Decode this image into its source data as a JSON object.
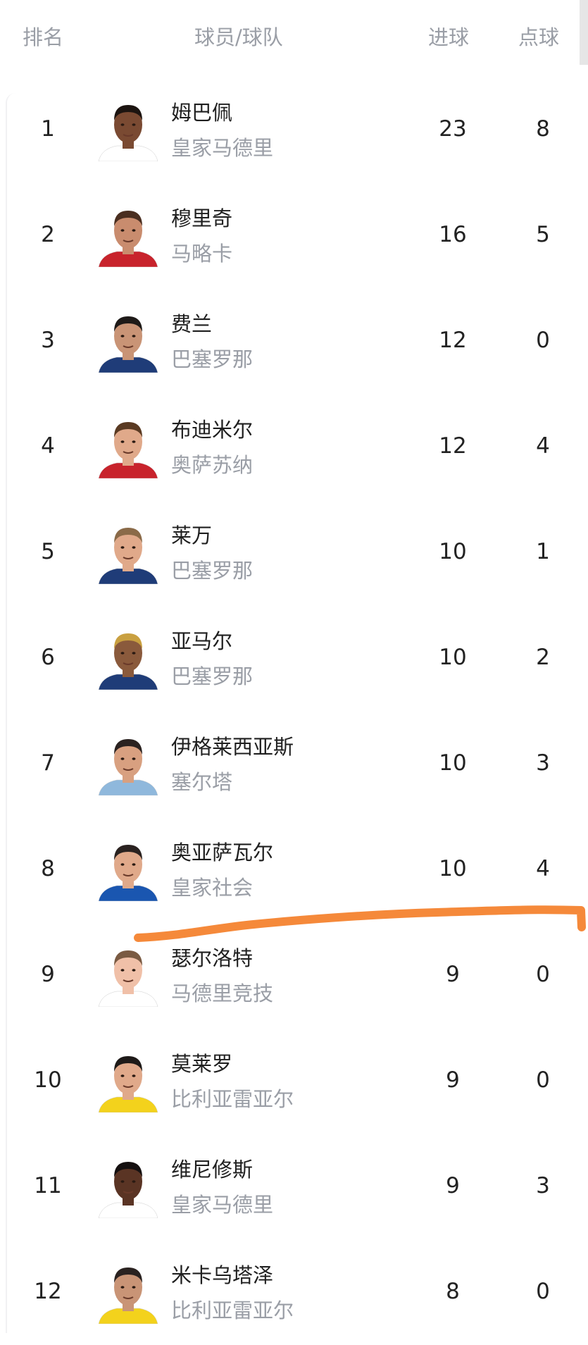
{
  "header": {
    "rank": "排名",
    "player_team": "球员/球队",
    "goals": "进球",
    "penalties": "点球"
  },
  "annotation_color": "#f5893a",
  "rows": [
    {
      "rank": "1",
      "name": "姆巴佩",
      "team": "皇家马德里",
      "goals": "23",
      "penalties": "8",
      "skin": "#7a4a32",
      "hair": "#1c1410",
      "jersey": "#ffffff"
    },
    {
      "rank": "2",
      "name": "穆里奇",
      "team": "马略卡",
      "goals": "16",
      "penalties": "5",
      "skin": "#c98c6e",
      "hair": "#4a2e20",
      "jersey": "#c8232c"
    },
    {
      "rank": "3",
      "name": "费兰",
      "team": "巴塞罗那",
      "goals": "12",
      "penalties": "0",
      "skin": "#c99476",
      "hair": "#1e1a18",
      "jersey": "#1f3c78"
    },
    {
      "rank": "4",
      "name": "布迪米尔",
      "team": "奥萨苏纳",
      "goals": "12",
      "penalties": "4",
      "skin": "#e0a98a",
      "hair": "#5a3a22",
      "jersey": "#c8232c"
    },
    {
      "rank": "5",
      "name": "莱万",
      "team": "巴塞罗那",
      "goals": "10",
      "penalties": "1",
      "skin": "#e0a98a",
      "hair": "#8a6a48",
      "jersey": "#1f3c78"
    },
    {
      "rank": "6",
      "name": "亚马尔",
      "team": "巴塞罗那",
      "goals": "10",
      "penalties": "2",
      "skin": "#8a5a3c",
      "hair": "#c9a040",
      "jersey": "#1f3c78"
    },
    {
      "rank": "7",
      "name": "伊格莱西亚斯",
      "team": "塞尔塔",
      "goals": "10",
      "penalties": "3",
      "skin": "#d8a080",
      "hair": "#2a2220",
      "jersey": "#8fb8dc"
    },
    {
      "rank": "8",
      "name": "奥亚萨瓦尔",
      "team": "皇家社会",
      "goals": "10",
      "penalties": "4",
      "skin": "#e0a98a",
      "hair": "#2a2220",
      "jersey": "#1a56b0"
    },
    {
      "rank": "9",
      "name": "瑟尔洛特",
      "team": "马德里竞技",
      "goals": "9",
      "penalties": "0",
      "skin": "#f0c0a8",
      "hair": "#7a5a42",
      "jersey": "#ffffff"
    },
    {
      "rank": "10",
      "name": "莫莱罗",
      "team": "比利亚雷亚尔",
      "goals": "9",
      "penalties": "0",
      "skin": "#e0a98a",
      "hair": "#1e1a18",
      "jersey": "#f3d21c"
    },
    {
      "rank": "11",
      "name": "维尼修斯",
      "team": "皇家马德里",
      "goals": "9",
      "penalties": "3",
      "skin": "#5a3424",
      "hair": "#151010",
      "jersey": "#ffffff"
    },
    {
      "rank": "12",
      "name": "米卡乌塔泽",
      "team": "比利亚雷亚尔",
      "goals": "8",
      "penalties": "0",
      "skin": "#c99476",
      "hair": "#2a2220",
      "jersey": "#f3d21c"
    }
  ]
}
